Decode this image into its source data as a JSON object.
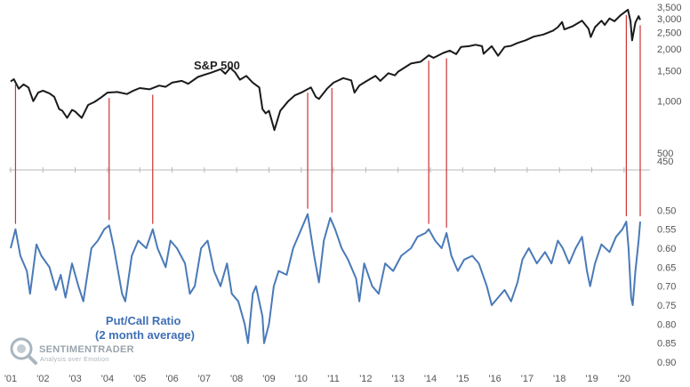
{
  "chart_data": {
    "type": "line",
    "title": "",
    "x_tick_labels": [
      "'01",
      "'02",
      "'03",
      "'04",
      "'05",
      "'06",
      "'07",
      "'08",
      "'09",
      "'10",
      "'11",
      "'12",
      "'13",
      "'14",
      "'15",
      "'16",
      "'17",
      "'18",
      "'19",
      "'20"
    ],
    "x_range": [
      2001.0,
      2020.5
    ],
    "upper_panel": {
      "series_label": "S&P 500",
      "y_scale": "log",
      "y_range": [
        400,
        3500
      ],
      "y_tick_labels": [
        "3,500",
        "3,000",
        "2,500",
        "2,000",
        "1,500",
        "1,000",
        "500",
        "450"
      ],
      "y_ticks": [
        3500,
        3000,
        2500,
        2000,
        1500,
        1000,
        500,
        450
      ],
      "color": "#1a1a1a",
      "series": [
        {
          "x": 2001.0,
          "y": 1300
        },
        {
          "x": 2001.1,
          "y": 1340
        },
        {
          "x": 2001.25,
          "y": 1180
        },
        {
          "x": 2001.4,
          "y": 1250
        },
        {
          "x": 2001.55,
          "y": 1200
        },
        {
          "x": 2001.7,
          "y": 1000
        },
        {
          "x": 2001.85,
          "y": 1120
        },
        {
          "x": 2002.0,
          "y": 1150
        },
        {
          "x": 2002.2,
          "y": 1110
        },
        {
          "x": 2002.35,
          "y": 1060
        },
        {
          "x": 2002.5,
          "y": 900
        },
        {
          "x": 2002.6,
          "y": 880
        },
        {
          "x": 2002.75,
          "y": 800
        },
        {
          "x": 2002.9,
          "y": 890
        },
        {
          "x": 2003.0,
          "y": 870
        },
        {
          "x": 2003.2,
          "y": 800
        },
        {
          "x": 2003.4,
          "y": 950
        },
        {
          "x": 2003.6,
          "y": 990
        },
        {
          "x": 2003.8,
          "y": 1050
        },
        {
          "x": 2004.0,
          "y": 1120
        },
        {
          "x": 2004.3,
          "y": 1130
        },
        {
          "x": 2004.6,
          "y": 1100
        },
        {
          "x": 2004.8,
          "y": 1150
        },
        {
          "x": 2005.0,
          "y": 1190
        },
        {
          "x": 2005.3,
          "y": 1170
        },
        {
          "x": 2005.6,
          "y": 1230
        },
        {
          "x": 2005.8,
          "y": 1210
        },
        {
          "x": 2006.0,
          "y": 1280
        },
        {
          "x": 2006.3,
          "y": 1310
        },
        {
          "x": 2006.5,
          "y": 1260
        },
        {
          "x": 2006.8,
          "y": 1380
        },
        {
          "x": 2007.0,
          "y": 1420
        },
        {
          "x": 2007.2,
          "y": 1460
        },
        {
          "x": 2007.5,
          "y": 1530
        },
        {
          "x": 2007.65,
          "y": 1440
        },
        {
          "x": 2007.8,
          "y": 1560
        },
        {
          "x": 2007.95,
          "y": 1470
        },
        {
          "x": 2008.1,
          "y": 1330
        },
        {
          "x": 2008.3,
          "y": 1400
        },
        {
          "x": 2008.5,
          "y": 1280
        },
        {
          "x": 2008.7,
          "y": 1200
        },
        {
          "x": 2008.8,
          "y": 900
        },
        {
          "x": 2008.9,
          "y": 850
        },
        {
          "x": 2009.0,
          "y": 880
        },
        {
          "x": 2009.17,
          "y": 680
        },
        {
          "x": 2009.35,
          "y": 880
        },
        {
          "x": 2009.6,
          "y": 1000
        },
        {
          "x": 2009.8,
          "y": 1080
        },
        {
          "x": 2010.0,
          "y": 1120
        },
        {
          "x": 2010.3,
          "y": 1200
        },
        {
          "x": 2010.45,
          "y": 1060
        },
        {
          "x": 2010.55,
          "y": 1030
        },
        {
          "x": 2010.8,
          "y": 1180
        },
        {
          "x": 2011.0,
          "y": 1280
        },
        {
          "x": 2011.3,
          "y": 1360
        },
        {
          "x": 2011.55,
          "y": 1320
        },
        {
          "x": 2011.65,
          "y": 1120
        },
        {
          "x": 2011.8,
          "y": 1230
        },
        {
          "x": 2012.0,
          "y": 1300
        },
        {
          "x": 2012.3,
          "y": 1400
        },
        {
          "x": 2012.45,
          "y": 1310
        },
        {
          "x": 2012.7,
          "y": 1450
        },
        {
          "x": 2012.9,
          "y": 1410
        },
        {
          "x": 2013.0,
          "y": 1480
        },
        {
          "x": 2013.4,
          "y": 1650
        },
        {
          "x": 2013.7,
          "y": 1690
        },
        {
          "x": 2013.95,
          "y": 1840
        },
        {
          "x": 2014.1,
          "y": 1780
        },
        {
          "x": 2014.4,
          "y": 1900
        },
        {
          "x": 2014.6,
          "y": 1960
        },
        {
          "x": 2014.8,
          "y": 1870
        },
        {
          "x": 2014.95,
          "y": 2060
        },
        {
          "x": 2015.2,
          "y": 2080
        },
        {
          "x": 2015.4,
          "y": 2120
        },
        {
          "x": 2015.6,
          "y": 2080
        },
        {
          "x": 2015.65,
          "y": 1880
        },
        {
          "x": 2015.9,
          "y": 2080
        },
        {
          "x": 2016.1,
          "y": 1830
        },
        {
          "x": 2016.3,
          "y": 2060
        },
        {
          "x": 2016.5,
          "y": 2090
        },
        {
          "x": 2016.7,
          "y": 2170
        },
        {
          "x": 2016.95,
          "y": 2250
        },
        {
          "x": 2017.2,
          "y": 2360
        },
        {
          "x": 2017.5,
          "y": 2430
        },
        {
          "x": 2017.8,
          "y": 2560
        },
        {
          "x": 2017.95,
          "y": 2680
        },
        {
          "x": 2018.08,
          "y": 2870
        },
        {
          "x": 2018.15,
          "y": 2600
        },
        {
          "x": 2018.4,
          "y": 2710
        },
        {
          "x": 2018.7,
          "y": 2920
        },
        {
          "x": 2018.9,
          "y": 2620
        },
        {
          "x": 2018.97,
          "y": 2350
        },
        {
          "x": 2019.1,
          "y": 2680
        },
        {
          "x": 2019.3,
          "y": 2920
        },
        {
          "x": 2019.4,
          "y": 2760
        },
        {
          "x": 2019.55,
          "y": 3010
        },
        {
          "x": 2019.7,
          "y": 2900
        },
        {
          "x": 2019.9,
          "y": 3150
        },
        {
          "x": 2020.12,
          "y": 3380
        },
        {
          "x": 2020.2,
          "y": 2900
        },
        {
          "x": 2020.25,
          "y": 2250
        },
        {
          "x": 2020.35,
          "y": 2850
        },
        {
          "x": 2020.45,
          "y": 3100
        },
        {
          "x": 2020.5,
          "y": 2950
        }
      ]
    },
    "lower_panel": {
      "series_label": "Put/Call Ratio\n(2 month average)",
      "y_scale": "linear",
      "y_inverted": true,
      "y_range": [
        0.45,
        0.9
      ],
      "y_tick_labels": [
        "0.50",
        "0.55",
        "0.60",
        "0.65",
        "0.70",
        "0.75",
        "0.80",
        "0.85",
        "0.90"
      ],
      "y_ticks": [
        0.5,
        0.55,
        0.6,
        0.65,
        0.7,
        0.75,
        0.8,
        0.85,
        0.9
      ],
      "color": "#4a7ab8",
      "series": [
        {
          "x": 2001.0,
          "y": 0.6
        },
        {
          "x": 2001.15,
          "y": 0.55
        },
        {
          "x": 2001.3,
          "y": 0.62
        },
        {
          "x": 2001.5,
          "y": 0.66
        },
        {
          "x": 2001.6,
          "y": 0.72
        },
        {
          "x": 2001.8,
          "y": 0.59
        },
        {
          "x": 2001.95,
          "y": 0.62
        },
        {
          "x": 2002.2,
          "y": 0.65
        },
        {
          "x": 2002.4,
          "y": 0.71
        },
        {
          "x": 2002.55,
          "y": 0.67
        },
        {
          "x": 2002.7,
          "y": 0.73
        },
        {
          "x": 2002.9,
          "y": 0.64
        },
        {
          "x": 2003.1,
          "y": 0.7
        },
        {
          "x": 2003.25,
          "y": 0.74
        },
        {
          "x": 2003.5,
          "y": 0.6
        },
        {
          "x": 2003.7,
          "y": 0.58
        },
        {
          "x": 2003.9,
          "y": 0.55
        },
        {
          "x": 2004.05,
          "y": 0.54
        },
        {
          "x": 2004.2,
          "y": 0.6
        },
        {
          "x": 2004.45,
          "y": 0.72
        },
        {
          "x": 2004.55,
          "y": 0.74
        },
        {
          "x": 2004.75,
          "y": 0.62
        },
        {
          "x": 2004.95,
          "y": 0.58
        },
        {
          "x": 2005.2,
          "y": 0.6
        },
        {
          "x": 2005.4,
          "y": 0.55
        },
        {
          "x": 2005.55,
          "y": 0.6
        },
        {
          "x": 2005.8,
          "y": 0.65
        },
        {
          "x": 2005.95,
          "y": 0.58
        },
        {
          "x": 2006.15,
          "y": 0.6
        },
        {
          "x": 2006.4,
          "y": 0.64
        },
        {
          "x": 2006.55,
          "y": 0.72
        },
        {
          "x": 2006.7,
          "y": 0.7
        },
        {
          "x": 2006.9,
          "y": 0.6
        },
        {
          "x": 2007.1,
          "y": 0.58
        },
        {
          "x": 2007.3,
          "y": 0.66
        },
        {
          "x": 2007.5,
          "y": 0.7
        },
        {
          "x": 2007.7,
          "y": 0.64
        },
        {
          "x": 2007.85,
          "y": 0.72
        },
        {
          "x": 2008.05,
          "y": 0.74
        },
        {
          "x": 2008.25,
          "y": 0.8
        },
        {
          "x": 2008.35,
          "y": 0.85
        },
        {
          "x": 2008.5,
          "y": 0.72
        },
        {
          "x": 2008.6,
          "y": 0.7
        },
        {
          "x": 2008.8,
          "y": 0.78
        },
        {
          "x": 2008.85,
          "y": 0.85
        },
        {
          "x": 2009.0,
          "y": 0.8
        },
        {
          "x": 2009.15,
          "y": 0.7
        },
        {
          "x": 2009.3,
          "y": 0.66
        },
        {
          "x": 2009.55,
          "y": 0.67
        },
        {
          "x": 2009.75,
          "y": 0.6
        },
        {
          "x": 2010.0,
          "y": 0.55
        },
        {
          "x": 2010.2,
          "y": 0.51
        },
        {
          "x": 2010.4,
          "y": 0.62
        },
        {
          "x": 2010.55,
          "y": 0.69
        },
        {
          "x": 2010.7,
          "y": 0.58
        },
        {
          "x": 2010.9,
          "y": 0.52
        },
        {
          "x": 2011.05,
          "y": 0.55
        },
        {
          "x": 2011.25,
          "y": 0.6
        },
        {
          "x": 2011.45,
          "y": 0.63
        },
        {
          "x": 2011.7,
          "y": 0.68
        },
        {
          "x": 2011.8,
          "y": 0.74
        },
        {
          "x": 2011.95,
          "y": 0.64
        },
        {
          "x": 2012.2,
          "y": 0.7
        },
        {
          "x": 2012.4,
          "y": 0.72
        },
        {
          "x": 2012.6,
          "y": 0.64
        },
        {
          "x": 2012.85,
          "y": 0.66
        },
        {
          "x": 2013.1,
          "y": 0.62
        },
        {
          "x": 2013.4,
          "y": 0.6
        },
        {
          "x": 2013.6,
          "y": 0.57
        },
        {
          "x": 2013.85,
          "y": 0.56
        },
        {
          "x": 2013.95,
          "y": 0.55
        },
        {
          "x": 2014.15,
          "y": 0.58
        },
        {
          "x": 2014.35,
          "y": 0.6
        },
        {
          "x": 2014.5,
          "y": 0.56
        },
        {
          "x": 2014.65,
          "y": 0.62
        },
        {
          "x": 2014.85,
          "y": 0.66
        },
        {
          "x": 2015.05,
          "y": 0.63
        },
        {
          "x": 2015.3,
          "y": 0.62
        },
        {
          "x": 2015.5,
          "y": 0.64
        },
        {
          "x": 2015.75,
          "y": 0.7
        },
        {
          "x": 2015.9,
          "y": 0.75
        },
        {
          "x": 2016.1,
          "y": 0.73
        },
        {
          "x": 2016.3,
          "y": 0.71
        },
        {
          "x": 2016.5,
          "y": 0.74
        },
        {
          "x": 2016.7,
          "y": 0.69
        },
        {
          "x": 2016.85,
          "y": 0.63
        },
        {
          "x": 2017.05,
          "y": 0.6
        },
        {
          "x": 2017.3,
          "y": 0.64
        },
        {
          "x": 2017.55,
          "y": 0.61
        },
        {
          "x": 2017.75,
          "y": 0.64
        },
        {
          "x": 2017.95,
          "y": 0.58
        },
        {
          "x": 2018.1,
          "y": 0.6
        },
        {
          "x": 2018.3,
          "y": 0.64
        },
        {
          "x": 2018.5,
          "y": 0.6
        },
        {
          "x": 2018.7,
          "y": 0.57
        },
        {
          "x": 2018.85,
          "y": 0.66
        },
        {
          "x": 2018.95,
          "y": 0.7
        },
        {
          "x": 2019.1,
          "y": 0.64
        },
        {
          "x": 2019.3,
          "y": 0.59
        },
        {
          "x": 2019.55,
          "y": 0.61
        },
        {
          "x": 2019.75,
          "y": 0.57
        },
        {
          "x": 2019.95,
          "y": 0.55
        },
        {
          "x": 2020.07,
          "y": 0.53
        },
        {
          "x": 2020.14,
          "y": 0.6
        },
        {
          "x": 2020.22,
          "y": 0.73
        },
        {
          "x": 2020.27,
          "y": 0.75
        },
        {
          "x": 2020.35,
          "y": 0.66
        },
        {
          "x": 2020.45,
          "y": 0.58
        },
        {
          "x": 2020.5,
          "y": 0.53
        }
      ]
    },
    "signal_markers": {
      "color": "#cc3333",
      "x": [
        2001.15,
        2004.05,
        2005.4,
        2010.2,
        2010.95,
        2013.95,
        2014.5,
        2020.07,
        2020.5
      ]
    },
    "grid": false,
    "legend": "none"
  },
  "watermark": {
    "name": "SENTIMENTRADER",
    "tagline": "Analysis over Emotion"
  }
}
